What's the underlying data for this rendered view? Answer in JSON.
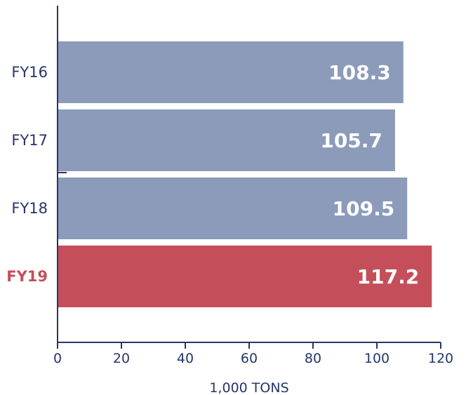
{
  "chart_data": {
    "type": "bar",
    "orientation": "horizontal",
    "categories": [
      "FY16",
      "FY17",
      "FY18",
      "FY19"
    ],
    "values": [
      108.3,
      105.7,
      109.5,
      117.2
    ],
    "value_labels": [
      "108.3",
      "105.7",
      "109.5",
      "117.2"
    ],
    "xlabel": "1,000 TONS",
    "ylabel": "",
    "title": "",
    "xlim": [
      0,
      120
    ],
    "xticks": [
      0,
      20,
      40,
      60,
      80,
      100,
      120
    ],
    "xtick_labels": [
      "0",
      "20",
      "40",
      "60",
      "80",
      "100",
      "120"
    ],
    "grid": false,
    "highlight_category": "FY19",
    "colors": {
      "bar": "#8b9bb9",
      "highlight_bar": "#c44f5a",
      "label": "#27356a",
      "highlight_label": "#c44f5a",
      "value_text": "#ffffff",
      "axis": "#27356a"
    }
  }
}
